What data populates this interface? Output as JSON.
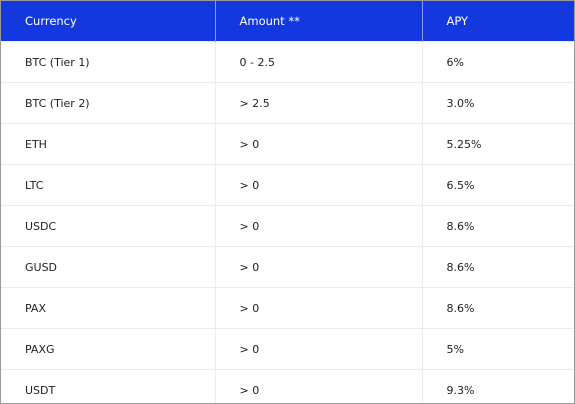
{
  "table": {
    "header": [
      "Currency",
      "Amount **",
      "APY"
    ],
    "rows": [
      [
        "BTC (Tier 1)",
        "0 - 2.5",
        "6%"
      ],
      [
        "BTC (Tier 2)",
        "> 2.5",
        "3.0%"
      ],
      [
        "ETH",
        "> 0",
        "5.25%"
      ],
      [
        "LTC",
        "> 0",
        "6.5%"
      ],
      [
        "USDC",
        "> 0",
        "8.6%"
      ],
      [
        "GUSD",
        "> 0",
        "8.6%"
      ],
      [
        "PAX",
        "> 0",
        "8.6%"
      ],
      [
        "PAXG",
        "> 0",
        "5%"
      ],
      [
        "USDT",
        "> 0",
        "9.3%"
      ]
    ]
  }
}
